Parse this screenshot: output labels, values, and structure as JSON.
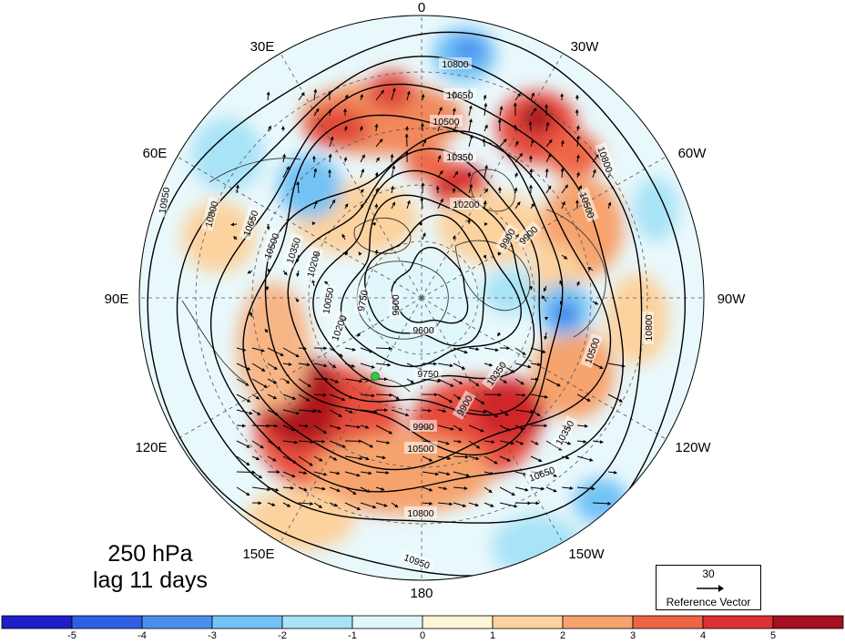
{
  "map": {
    "title_line1": "250 hPa",
    "title_line2": "lag 11 days",
    "longitude_labels": [
      "0",
      "30W",
      "60W",
      "90W",
      "120W",
      "150W",
      "180",
      "150E",
      "120E",
      "90E",
      "60E",
      "30E"
    ],
    "contour_labels": [
      "10950",
      "10800",
      "10650",
      "10500",
      "10350",
      "10200",
      "10050",
      "9900",
      "9750",
      "9600"
    ],
    "reference_vector": {
      "value": "30",
      "label": "Reference Vector"
    },
    "marker_color": "#2ecc40",
    "colorbar": {
      "ticks": [
        "-5",
        "-4",
        "-3",
        "-2",
        "-1",
        "0",
        "1",
        "2",
        "3",
        "4",
        "5"
      ],
      "colors": [
        "#1e1ec8",
        "#2f5fe6",
        "#4a8ff0",
        "#72c2f5",
        "#a8e3f7",
        "#dff7fb",
        "#fff6d8",
        "#fcd29e",
        "#f6a36e",
        "#ee6545",
        "#df3032",
        "#a50f1e"
      ]
    }
  }
}
